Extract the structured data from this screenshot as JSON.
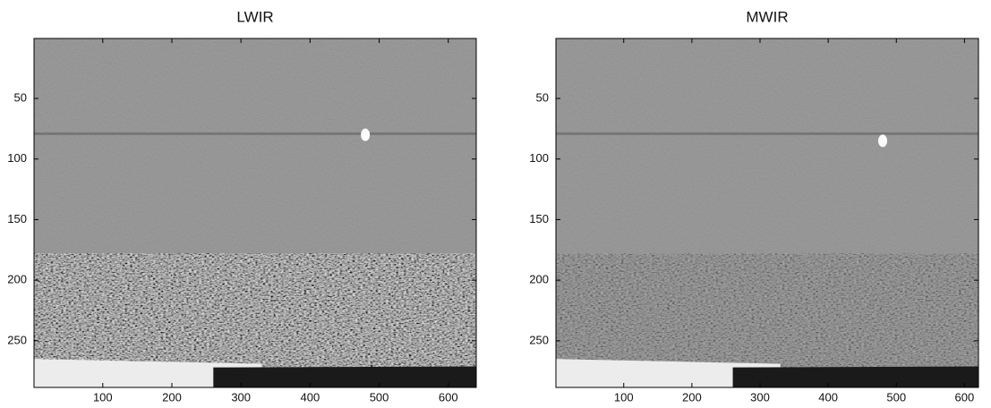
{
  "chart_data": [
    {
      "type": "image",
      "title": "LWIR",
      "xlim": [
        0.5,
        640.5
      ],
      "ylim": [
        0.5,
        288.5
      ],
      "yreverse": true,
      "xticks": [
        100,
        200,
        300,
        400,
        500,
        600
      ],
      "yticks": [
        50,
        100,
        150,
        200,
        250
      ]
    },
    {
      "type": "image",
      "title": "MWIR",
      "xlim": [
        0.5,
        620.5
      ],
      "ylim": [
        0.5,
        288.5
      ],
      "yreverse": true,
      "xticks": [
        100,
        200,
        300,
        400,
        500,
        600
      ],
      "yticks": [
        50,
        100,
        150,
        200,
        250
      ]
    }
  ]
}
